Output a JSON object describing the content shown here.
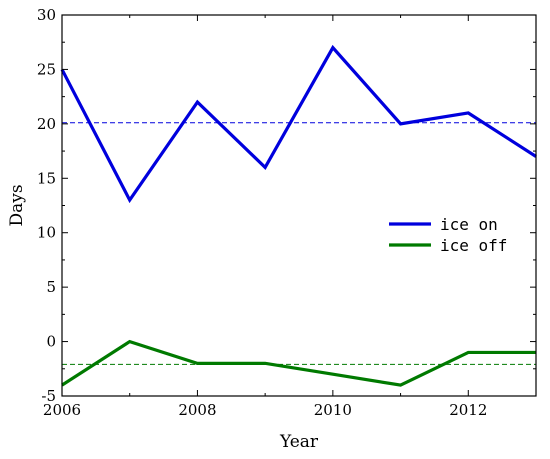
{
  "chart_data": {
    "type": "line",
    "xlabel": "Year",
    "ylabel": "Days",
    "xlim": [
      2006,
      2013
    ],
    "ylim": [
      -5,
      30
    ],
    "x_ticks": [
      2006,
      2008,
      2010,
      2012
    ],
    "y_ticks": [
      -5,
      0,
      5,
      10,
      15,
      20,
      25,
      30
    ],
    "x_ticks_labels": [
      "2006",
      "2008",
      "2010",
      "2012"
    ],
    "y_ticks_labels": [
      "-5",
      "0",
      "5",
      "10",
      "15",
      "20",
      "25",
      "30"
    ],
    "x": [
      2006,
      2007,
      2008,
      2009,
      2010,
      2011,
      2012,
      2013
    ],
    "series": [
      {
        "name": "ice on",
        "color": "#0000dd",
        "values": [
          25,
          13,
          22,
          16,
          27,
          20,
          21,
          17
        ],
        "mean_line": 20.1
      },
      {
        "name": "ice off",
        "color": "#007a00",
        "values": [
          -4,
          0,
          -2,
          -2,
          -3,
          -4,
          -1,
          -1
        ],
        "mean_line": -2.1
      }
    ],
    "legend_position": "center-right",
    "grid": false
  }
}
